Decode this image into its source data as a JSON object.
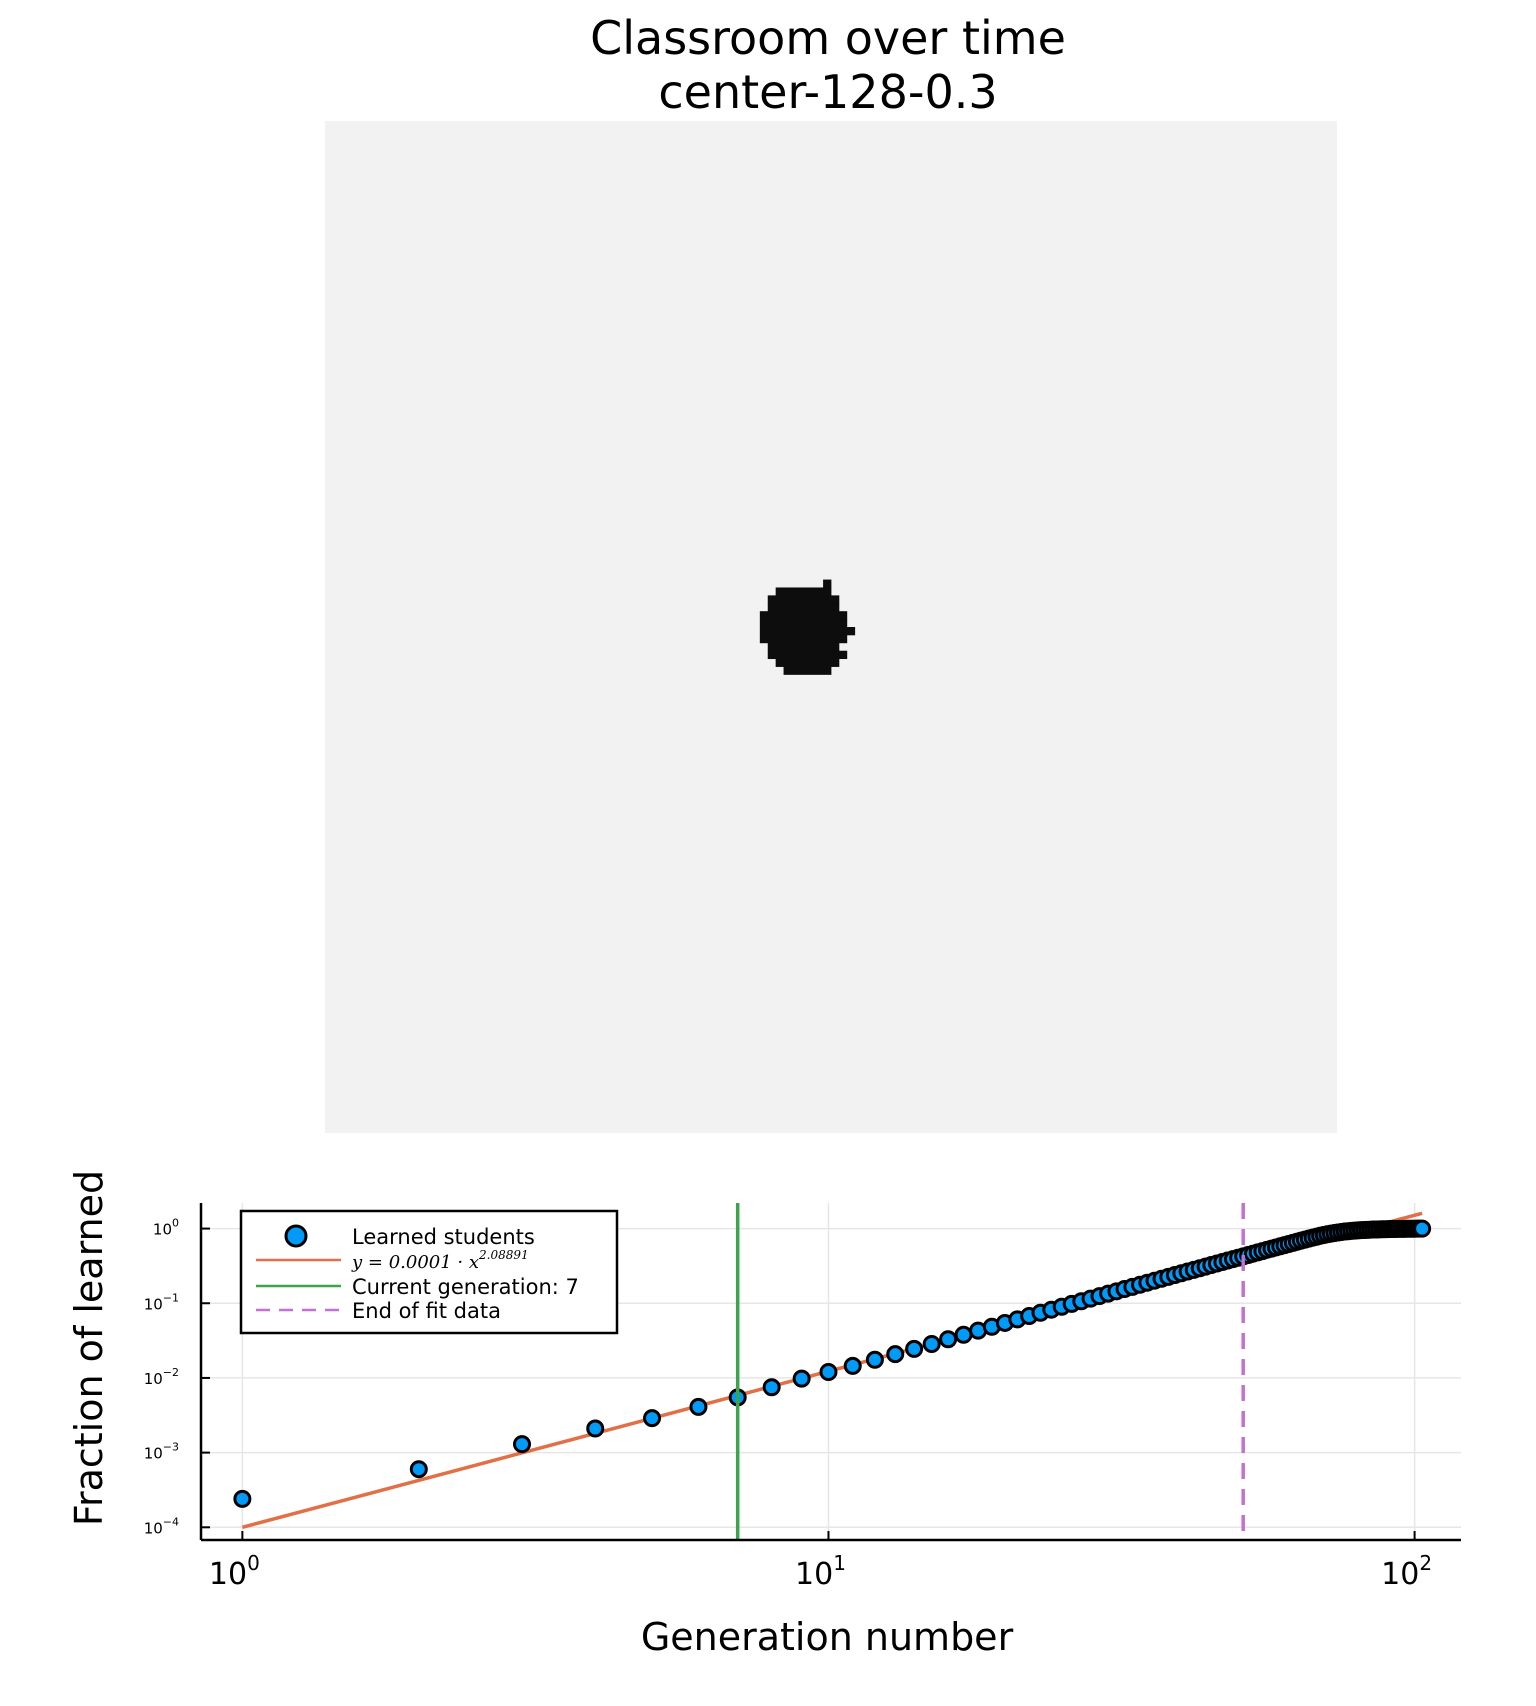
{
  "figure": {
    "title": "Classroom over time",
    "subtitle": "center-128-0.3"
  },
  "classroom_grid": {
    "size": 128,
    "background_color": "#f2f2f2",
    "learned_color": "#0d0d0d",
    "learned_rows": [
      [
        58,
        63,
        63
      ],
      [
        59,
        57,
        63
      ],
      [
        60,
        56,
        64
      ],
      [
        61,
        56,
        64
      ],
      [
        62,
        55,
        65
      ],
      [
        63,
        55,
        65
      ],
      [
        64,
        55,
        66
      ],
      [
        65,
        55,
        65
      ],
      [
        66,
        56,
        64
      ],
      [
        67,
        56,
        65
      ],
      [
        68,
        57,
        64
      ],
      [
        69,
        58,
        63
      ]
    ]
  },
  "chart_data": {
    "type": "scatter",
    "xlabel": "Generation number",
    "ylabel": "Fraction of learned",
    "xscale": "log10",
    "yscale": "log10",
    "xlim": [
      0.85,
      120
    ],
    "ylim": [
      6.76e-05,
      2.2
    ],
    "x_ticks": [
      {
        "value": 1,
        "base": "10",
        "exp": "0"
      },
      {
        "value": 10,
        "base": "10",
        "exp": "1"
      },
      {
        "value": 100,
        "base": "10",
        "exp": "2"
      }
    ],
    "y_ticks": [
      {
        "value": 1,
        "base": "10",
        "exp": "0"
      },
      {
        "value": 0.1,
        "base": "10",
        "exp": "−1"
      },
      {
        "value": 0.01,
        "base": "10",
        "exp": "−2"
      },
      {
        "value": 0.001,
        "base": "10",
        "exp": "−3"
      },
      {
        "value": 0.0001,
        "base": "10",
        "exp": "−4"
      }
    ],
    "grid": true,
    "legend_position": "top-left",
    "series": [
      {
        "name": "Learned students",
        "kind": "scatter",
        "color": "#009af9",
        "x": [
          1,
          2,
          3,
          4,
          5,
          6,
          7,
          8,
          9,
          10,
          11,
          12,
          13,
          14,
          15,
          16,
          17,
          18,
          19,
          20,
          21,
          22,
          23,
          24,
          25,
          26,
          27,
          28,
          29,
          30,
          31,
          32,
          33,
          34,
          35,
          36,
          37,
          38,
          39,
          40,
          41,
          42,
          43,
          44,
          45,
          46,
          47,
          48,
          49,
          50,
          51,
          52,
          53,
          54,
          55,
          56,
          57,
          58,
          59,
          60,
          61,
          62,
          63,
          64,
          65,
          66,
          67,
          68,
          69,
          70,
          71,
          72,
          73,
          74,
          75,
          76,
          77,
          78,
          79,
          80,
          81,
          82,
          83,
          84,
          85,
          86,
          87,
          88,
          89,
          90,
          91,
          92,
          93,
          94,
          95,
          96,
          97,
          98,
          99,
          100,
          101,
          102,
          103
        ],
        "y": [
          0.00024,
          0.0006,
          0.0013,
          0.0021,
          0.0029,
          0.0041,
          0.0055,
          0.0075,
          0.0098,
          0.012,
          0.0145,
          0.0175,
          0.0208,
          0.0245,
          0.0285,
          0.033,
          0.0378,
          0.043,
          0.0485,
          0.0545,
          0.0608,
          0.0675,
          0.0745,
          0.082,
          0.0898,
          0.098,
          0.1065,
          0.1155,
          0.1248,
          0.1345,
          0.1445,
          0.155,
          0.1658,
          0.177,
          0.1885,
          0.2005,
          0.2128,
          0.2255,
          0.2385,
          0.252,
          0.2658,
          0.28,
          0.2945,
          0.3095,
          0.3248,
          0.3405,
          0.3565,
          0.373,
          0.39,
          0.407,
          0.425,
          0.443,
          0.461,
          0.48,
          0.499,
          0.519,
          0.539,
          0.559,
          0.58,
          0.601,
          0.622,
          0.644,
          0.666,
          0.689,
          0.711,
          0.734,
          0.756,
          0.778,
          0.8,
          0.82,
          0.84,
          0.857,
          0.873,
          0.887,
          0.9,
          0.912,
          0.922,
          0.931,
          0.939,
          0.946,
          0.952,
          0.957,
          0.962,
          0.966,
          0.97,
          0.973,
          0.976,
          0.979,
          0.981,
          0.983,
          0.985,
          0.987,
          0.988,
          0.99,
          0.991,
          0.992,
          0.993,
          0.994,
          0.995,
          0.996,
          0.997,
          0.998,
          0.999
        ]
      },
      {
        "name": "y = 0.0001 · x^2.08891",
        "legend_math": {
          "lhs": "y = 0.0001 · x",
          "exp": "2.08891"
        },
        "kind": "fit",
        "color": "#e26f46",
        "coefficient": 0.0001,
        "exponent": 2.08891,
        "x_range": [
          1,
          103
        ]
      },
      {
        "name": "Current generation: 7",
        "kind": "vline",
        "color": "#3da44d",
        "x": 7
      },
      {
        "name": "End of fit data",
        "kind": "vline-dashed",
        "color": "#c271d2",
        "x": 51
      }
    ]
  }
}
